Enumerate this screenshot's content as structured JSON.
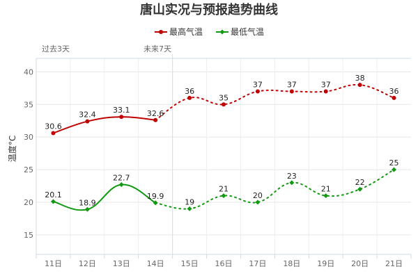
{
  "chart_data": {
    "type": "line",
    "title": "唐山实况与预报趋势曲线",
    "ylabel": "温度°C",
    "ylim": [
      12,
      41
    ],
    "yticks": [
      15,
      20,
      25,
      30,
      35,
      40
    ],
    "categories": [
      "11日",
      "12日",
      "13日",
      "14日",
      "15日",
      "16日",
      "17日",
      "18日",
      "19日",
      "20日",
      "21日"
    ],
    "period_labels": {
      "past": "过去3天",
      "future": "未来7天"
    },
    "series": [
      {
        "name": "最高气温",
        "color": "#c00000",
        "values": [
          30.6,
          32.4,
          33.1,
          32.6,
          36,
          35,
          37,
          37,
          37,
          38,
          36
        ],
        "labels": [
          "30.6",
          "32.4",
          "33.1",
          "32.6",
          "36",
          "35",
          "37",
          "37",
          "37",
          "38",
          "36"
        ]
      },
      {
        "name": "最低气温",
        "color": "#119911",
        "values": [
          20.1,
          18.9,
          22.7,
          19.9,
          19,
          21,
          20,
          23,
          21,
          22,
          25
        ],
        "labels": [
          "20.1",
          "18.9",
          "22.7",
          "19.9",
          "19",
          "21",
          "20",
          "23",
          "21",
          "22",
          "25"
        ]
      }
    ],
    "observed_count": 4,
    "grid": true,
    "legend": "top-center"
  }
}
